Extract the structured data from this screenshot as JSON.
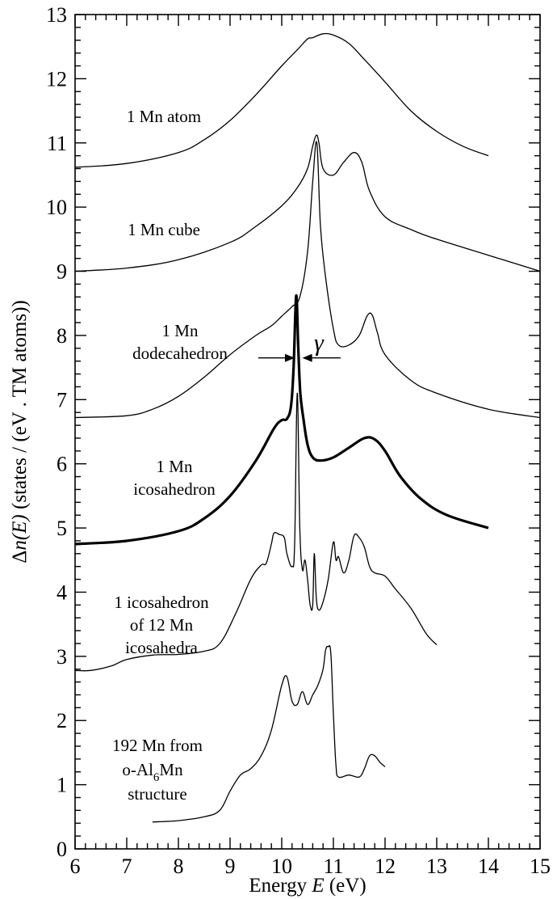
{
  "chart_data": {
    "type": "line",
    "xlabel": {
      "prefix": "Energy ",
      "var": "E",
      "suffix": " (eV)"
    },
    "ylabel": {
      "delta": "Δ",
      "var": "n(E)",
      "suffix": " (states / (eV . TM atoms))"
    },
    "xlim": [
      6,
      15
    ],
    "ylim": [
      0,
      13
    ],
    "xticks": [
      "6",
      "7",
      "8",
      "9",
      "10",
      "11",
      "12",
      "13",
      "14",
      "15"
    ],
    "yticks": [
      "0",
      "1",
      "2",
      "3",
      "4",
      "5",
      "6",
      "7",
      "8",
      "9",
      "10",
      "11",
      "12",
      "13"
    ],
    "grid": false,
    "gamma_marker": {
      "symbol": "γ",
      "x_left": 10.25,
      "x_right": 10.4,
      "y": 7.65
    },
    "series": [
      {
        "id": "atom",
        "annotation": [
          "1 Mn atom"
        ],
        "bold": false,
        "points": [
          [
            6.0,
            10.62
          ],
          [
            7.0,
            10.68
          ],
          [
            8.0,
            10.85
          ],
          [
            8.5,
            11.05
          ],
          [
            9.0,
            11.35
          ],
          [
            9.5,
            11.75
          ],
          [
            10.0,
            12.2
          ],
          [
            10.3,
            12.45
          ],
          [
            10.5,
            12.62
          ],
          [
            10.6,
            12.64
          ],
          [
            10.8,
            12.7
          ],
          [
            11.0,
            12.68
          ],
          [
            11.3,
            12.55
          ],
          [
            11.6,
            12.3
          ],
          [
            12.0,
            11.95
          ],
          [
            12.5,
            11.5
          ],
          [
            13.0,
            11.18
          ],
          [
            13.5,
            10.95
          ],
          [
            14.0,
            10.8
          ]
        ]
      },
      {
        "id": "cube",
        "annotation": [
          "1 Mn cube"
        ],
        "bold": false,
        "points": [
          [
            6.0,
            9.0
          ],
          [
            7.0,
            9.05
          ],
          [
            8.0,
            9.18
          ],
          [
            9.0,
            9.45
          ],
          [
            9.5,
            9.7
          ],
          [
            10.0,
            10.02
          ],
          [
            10.3,
            10.3
          ],
          [
            10.5,
            10.6
          ],
          [
            10.6,
            10.95
          ],
          [
            10.67,
            11.12
          ],
          [
            10.72,
            11.0
          ],
          [
            10.8,
            10.6
          ],
          [
            11.0,
            10.5
          ],
          [
            11.2,
            10.7
          ],
          [
            11.4,
            10.85
          ],
          [
            11.55,
            10.7
          ],
          [
            11.7,
            10.25
          ],
          [
            12.0,
            9.85
          ],
          [
            12.5,
            9.65
          ],
          [
            13.0,
            9.5
          ],
          [
            14.0,
            9.25
          ],
          [
            15.0,
            9.0
          ]
        ]
      },
      {
        "id": "dodeca",
        "annotation": [
          "1 Mn",
          "dodecahedron"
        ],
        "bold": false,
        "points": [
          [
            6.0,
            6.72
          ],
          [
            7.0,
            6.75
          ],
          [
            7.5,
            6.85
          ],
          [
            8.0,
            7.05
          ],
          [
            8.5,
            7.35
          ],
          [
            9.0,
            7.7
          ],
          [
            9.5,
            8.0
          ],
          [
            9.8,
            8.15
          ],
          [
            10.0,
            8.3
          ],
          [
            10.2,
            8.45
          ],
          [
            10.35,
            8.6
          ],
          [
            10.5,
            9.3
          ],
          [
            10.6,
            10.4
          ],
          [
            10.68,
            11.0
          ],
          [
            10.75,
            9.7
          ],
          [
            10.85,
            8.9
          ],
          [
            11.0,
            8.1
          ],
          [
            11.1,
            7.85
          ],
          [
            11.3,
            7.85
          ],
          [
            11.5,
            8.0
          ],
          [
            11.65,
            8.3
          ],
          [
            11.75,
            8.32
          ],
          [
            11.85,
            8.05
          ],
          [
            12.0,
            7.7
          ],
          [
            12.5,
            7.3
          ],
          [
            13.0,
            7.1
          ],
          [
            14.0,
            6.85
          ],
          [
            15.0,
            6.72
          ]
        ]
      },
      {
        "id": "icosa",
        "annotation": [
          "1 Mn",
          "icosahedron"
        ],
        "bold": true,
        "points": [
          [
            6.0,
            4.75
          ],
          [
            7.0,
            4.8
          ],
          [
            8.0,
            4.95
          ],
          [
            8.5,
            5.15
          ],
          [
            9.0,
            5.5
          ],
          [
            9.5,
            6.05
          ],
          [
            9.85,
            6.55
          ],
          [
            10.0,
            6.68
          ],
          [
            10.1,
            6.7
          ],
          [
            10.18,
            6.9
          ],
          [
            10.23,
            7.5
          ],
          [
            10.28,
            8.62
          ],
          [
            10.32,
            7.8
          ],
          [
            10.36,
            7.1
          ],
          [
            10.42,
            6.7
          ],
          [
            10.5,
            6.3
          ],
          [
            10.6,
            6.1
          ],
          [
            10.75,
            6.05
          ],
          [
            11.0,
            6.1
          ],
          [
            11.3,
            6.25
          ],
          [
            11.6,
            6.4
          ],
          [
            11.8,
            6.38
          ],
          [
            12.0,
            6.2
          ],
          [
            12.3,
            5.8
          ],
          [
            12.7,
            5.45
          ],
          [
            13.2,
            5.2
          ],
          [
            14.0,
            5.0
          ]
        ]
      },
      {
        "id": "cluster12",
        "annotation": [
          "1 icosahedron",
          "of 12 Mn",
          "icosahedra"
        ],
        "bold": false,
        "points": [
          [
            6.0,
            2.78
          ],
          [
            6.3,
            2.78
          ],
          [
            6.7,
            2.85
          ],
          [
            7.0,
            2.95
          ],
          [
            7.5,
            3.02
          ],
          [
            8.0,
            3.03
          ],
          [
            8.5,
            3.08
          ],
          [
            8.8,
            3.2
          ],
          [
            9.1,
            3.65
          ],
          [
            9.4,
            4.2
          ],
          [
            9.6,
            4.42
          ],
          [
            9.7,
            4.45
          ],
          [
            9.8,
            4.75
          ],
          [
            9.85,
            4.92
          ],
          [
            9.95,
            4.9
          ],
          [
            10.05,
            4.85
          ],
          [
            10.1,
            4.6
          ],
          [
            10.2,
            4.4
          ],
          [
            10.25,
            4.75
          ],
          [
            10.3,
            7.1
          ],
          [
            10.35,
            5.0
          ],
          [
            10.4,
            4.35
          ],
          [
            10.45,
            4.5
          ],
          [
            10.5,
            4.2
          ],
          [
            10.55,
            3.8
          ],
          [
            10.6,
            3.8
          ],
          [
            10.63,
            4.6
          ],
          [
            10.67,
            3.9
          ],
          [
            10.72,
            3.72
          ],
          [
            10.8,
            3.85
          ],
          [
            10.9,
            4.2
          ],
          [
            11.0,
            4.78
          ],
          [
            11.05,
            4.5
          ],
          [
            11.1,
            4.55
          ],
          [
            11.2,
            4.3
          ],
          [
            11.3,
            4.5
          ],
          [
            11.4,
            4.88
          ],
          [
            11.5,
            4.85
          ],
          [
            11.6,
            4.7
          ],
          [
            11.7,
            4.4
          ],
          [
            11.8,
            4.3
          ],
          [
            12.0,
            4.25
          ],
          [
            12.2,
            4.05
          ],
          [
            12.5,
            3.75
          ],
          [
            12.8,
            3.35
          ],
          [
            13.0,
            3.18
          ]
        ]
      },
      {
        "id": "bulk192",
        "annotation": [
          "192 Mn from",
          "o-Al",
          "6",
          "Mn",
          "structure"
        ],
        "bold": false,
        "points": [
          [
            7.5,
            0.42
          ],
          [
            8.0,
            0.44
          ],
          [
            8.5,
            0.5
          ],
          [
            8.8,
            0.6
          ],
          [
            9.0,
            0.9
          ],
          [
            9.2,
            1.15
          ],
          [
            9.4,
            1.25
          ],
          [
            9.6,
            1.45
          ],
          [
            9.8,
            1.85
          ],
          [
            10.0,
            2.55
          ],
          [
            10.1,
            2.68
          ],
          [
            10.2,
            2.3
          ],
          [
            10.3,
            2.25
          ],
          [
            10.4,
            2.45
          ],
          [
            10.5,
            2.25
          ],
          [
            10.6,
            2.4
          ],
          [
            10.7,
            2.55
          ],
          [
            10.8,
            2.8
          ],
          [
            10.85,
            3.1
          ],
          [
            10.9,
            3.15
          ],
          [
            10.95,
            3.05
          ],
          [
            11.0,
            2.1
          ],
          [
            11.05,
            1.3
          ],
          [
            11.1,
            1.12
          ],
          [
            11.3,
            1.15
          ],
          [
            11.5,
            1.12
          ],
          [
            11.6,
            1.25
          ],
          [
            11.7,
            1.45
          ],
          [
            11.8,
            1.45
          ],
          [
            11.9,
            1.35
          ],
          [
            12.0,
            1.28
          ]
        ]
      }
    ]
  }
}
